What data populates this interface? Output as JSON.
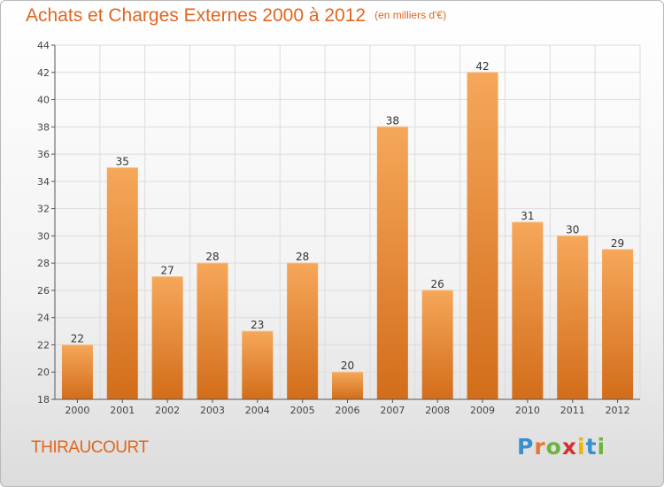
{
  "title": "Achats et Charges Externes 2000 à 2012",
  "unit_label": "(en milliers d'€)",
  "commune": "THIRAUCOURT",
  "logo": {
    "letters": [
      "P",
      "r",
      "o",
      "x",
      "i",
      "t",
      "i"
    ],
    "colors": [
      "#3a8fd1",
      "#e8772e",
      "#6cb33f",
      "#d62f2f",
      "#f0b400",
      "#3a8fd1",
      "#6cb33f"
    ]
  },
  "colors": {
    "bar_light": "#f6a75a",
    "bar_dark": "#d26d1a",
    "title": "#e0661e",
    "grid": "#dcdcdc",
    "axis": "#555555"
  },
  "chart_data": {
    "type": "bar",
    "categories": [
      "2000",
      "2001",
      "2002",
      "2003",
      "2004",
      "2005",
      "2006",
      "2007",
      "2008",
      "2009",
      "2010",
      "2011",
      "2012"
    ],
    "values": [
      22,
      35,
      27,
      28,
      23,
      28,
      20,
      38,
      26,
      42,
      31,
      30,
      29
    ],
    "yticks": [
      18,
      20,
      22,
      24,
      26,
      28,
      30,
      32,
      34,
      36,
      38,
      40,
      42,
      44
    ],
    "ylim": [
      18,
      44
    ],
    "grid": true,
    "data_labels": true
  }
}
